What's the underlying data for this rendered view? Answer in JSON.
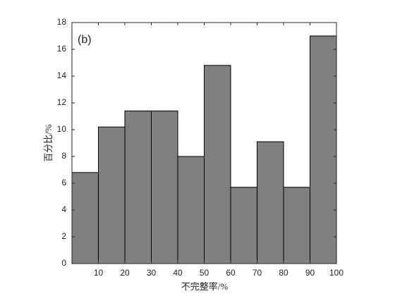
{
  "chart_data": {
    "type": "histogram",
    "annotation": "(b)",
    "xlabel": "不完整率/%",
    "ylabel": "百分比/%",
    "bins": [
      0,
      10,
      20,
      30,
      40,
      50,
      60,
      70,
      80,
      90,
      100
    ],
    "values": [
      6.8,
      10.2,
      11.4,
      11.4,
      8.0,
      14.8,
      5.7,
      9.1,
      5.7,
      17.0
    ],
    "color": "#808080",
    "xlim": [
      0,
      100
    ],
    "xticks": [
      10,
      20,
      30,
      40,
      50,
      60,
      70,
      80,
      90,
      100
    ],
    "ylim": [
      0,
      18
    ],
    "yticks": [
      0,
      2,
      4,
      6,
      8,
      10,
      12,
      14,
      16,
      18
    ]
  }
}
